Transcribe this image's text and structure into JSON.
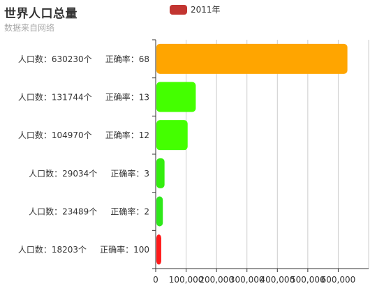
{
  "title": "世界人口总量",
  "subtitle": "数据来自网络",
  "legend": {
    "label": "2011年",
    "color": "#c23531"
  },
  "colors": {
    "grid": "#cccccc",
    "axis": "#333333",
    "text": "#333333"
  },
  "chart_data": {
    "type": "bar",
    "orientation": "horizontal",
    "title": "世界人口总量",
    "subtitle": "数据来自网络",
    "categories": [
      "人口数：18203个     正确率：100",
      "人口数：23489个     正确率：2",
      "人口数：29034个     正确率：3",
      "人口数：104970个     正确率：12",
      "人口数：131744个     正确率：13",
      "人口数：630230个     正确率：68"
    ],
    "series": [
      {
        "name": "2011年",
        "values": [
          18203,
          23489,
          29034,
          104970,
          131744,
          630230
        ],
        "colors": [
          "#ff1a1a",
          "#2ee81a",
          "#33ee0e",
          "#44ff00",
          "#44ff00",
          "#ffa500"
        ]
      }
    ],
    "xlim": [
      0,
      700000
    ],
    "xticks": [
      0,
      100000,
      200000,
      300000,
      400000,
      500000,
      600000
    ],
    "xtick_labels": [
      "0",
      "100,000",
      "200,000",
      "300,000",
      "400,000",
      "500,000",
      "600,000"
    ],
    "grid": true,
    "legend_position": "top-center"
  }
}
